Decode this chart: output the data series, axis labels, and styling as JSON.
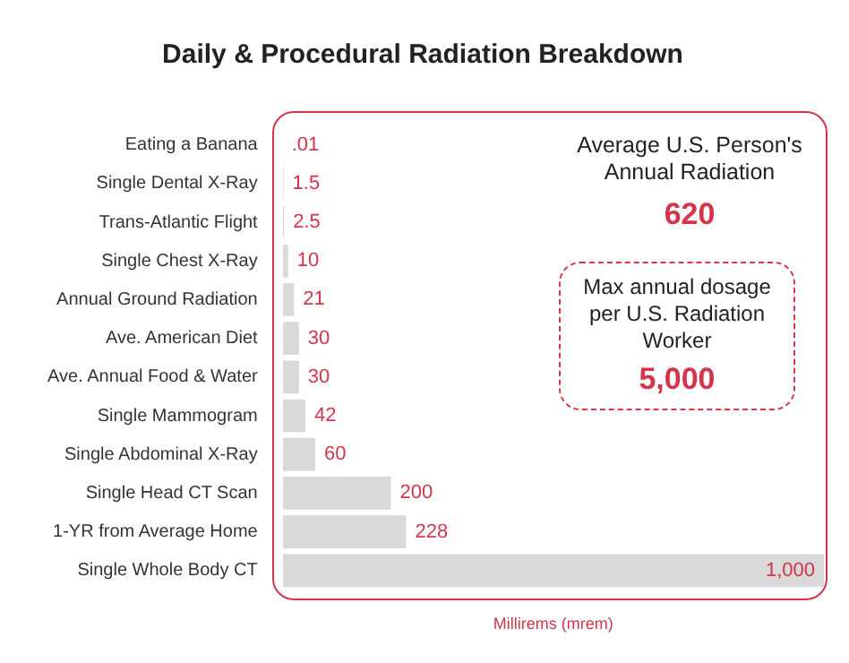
{
  "chart_data": {
    "type": "bar",
    "orientation": "horizontal",
    "title": "Daily & Procedural Radiation Breakdown",
    "xlabel": "Millirems (mrem)",
    "categories": [
      "Eating a Banana",
      "Single Dental X-Ray",
      "Trans-Atlantic Flight",
      "Single Chest X-Ray",
      "Annual Ground Radiation",
      "Ave. American Diet",
      "Ave. Annual Food & Water",
      "Single Mammogram",
      "Single Abdominal X-Ray",
      "Single Head CT Scan",
      "1-YR from Average Home",
      "Single Whole Body CT"
    ],
    "values": [
      0.01,
      1.5,
      2.5,
      10,
      21,
      30,
      30,
      42,
      60,
      200,
      228,
      1000
    ],
    "value_labels": [
      ".01",
      "1.5",
      "2.5",
      "10",
      "21",
      "30",
      "30",
      "42",
      "60",
      "200",
      "228",
      "1,000"
    ],
    "color": "#d9d9d9",
    "xlim": [
      0,
      1000
    ],
    "tick_labels": "y",
    "grid": false,
    "legend": false,
    "annotations": [
      "Average U.S. Person's Annual Radiation",
      "620",
      "Max annual dosage per U.S. Radiation Worker",
      "5,000"
    ]
  }
}
